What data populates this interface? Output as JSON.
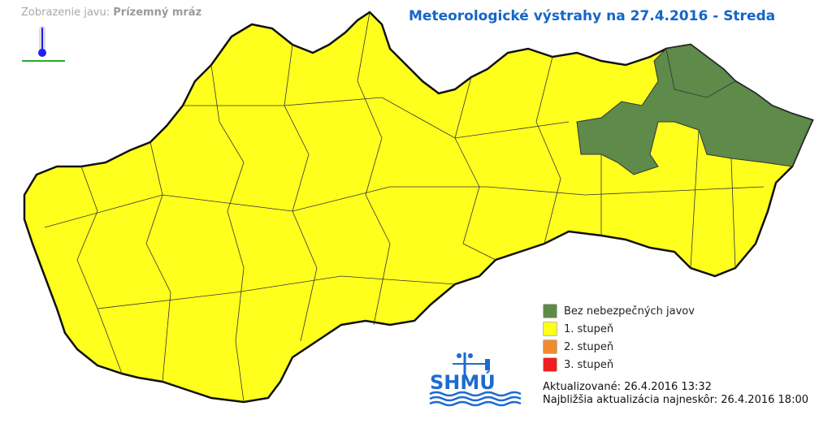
{
  "header": {
    "phenomenon_label": "Zobrazenie javu:",
    "phenomenon_value": "Prízemný mráz",
    "title": "Meteorologické výstrahy na 27.4.2016 - Streda"
  },
  "icons": {
    "phenomenon": "ground-frost-thermometer-icon",
    "logo": "shmu-logo"
  },
  "legend": [
    {
      "label": "Bez nebezpečných javov",
      "color": "#5e8a4a"
    },
    {
      "label": "1. stupeň",
      "color": "#ffff1e"
    },
    {
      "label": "2. stupeň",
      "color": "#f28a30"
    },
    {
      "label": "3. stupeň",
      "color": "#f01e1e"
    }
  ],
  "updates": {
    "updated": "Aktualizované: 26.4.2016 13:32",
    "next": "Najbližšia aktualizácia najneskôr: 26.4.2016 18:00"
  },
  "logo_text": "SHMÚ",
  "map": {
    "warning_level_most_regions": "1. stupeň",
    "warning_level_northeast": "Bez nebezpečných javov"
  }
}
